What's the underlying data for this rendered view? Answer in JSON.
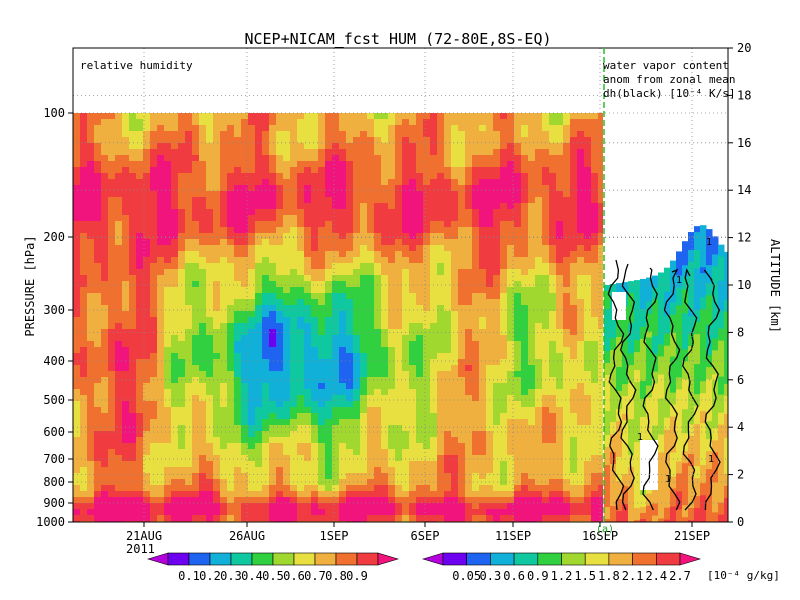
{
  "chart_data": {
    "type": "heatmap",
    "title": "NCEP+NICAM_fcst HUM (72-80E,8S-EQ)",
    "panel_label": "relative humidity",
    "right_panel_label": [
      "water vapor content",
      "anom from zonal mean",
      "dh(black) [10⁻⁴ K/s]"
    ],
    "ylabel": "PRESSURE [hPa]",
    "y2label": "ALTITUDE [km]",
    "y_ticks": [
      "100",
      "200",
      "300",
      "400",
      "500",
      "600",
      "700",
      "800",
      "900",
      "1000"
    ],
    "y2_ticks": [
      "0",
      "2",
      "4",
      "6",
      "8",
      "10",
      "12",
      "14",
      "16",
      "18",
      "20"
    ],
    "x_ticks": [
      "21AUG",
      "26AUG",
      "1SEP",
      "6SEP",
      "11SEP",
      "16SEP",
      "21SEP"
    ],
    "year_label": "2011",
    "forecast_marker": "(a)",
    "grid": true,
    "contour_label": "1",
    "colorbars": [
      {
        "name": "relative humidity",
        "labels": [
          "0.1",
          "0.2",
          "0.3",
          "0.4",
          "0.5",
          "0.6",
          "0.7",
          "0.8",
          "0.9"
        ],
        "colors": [
          "#b400dc",
          "#6e00f0",
          "#1e64f0",
          "#10b0d8",
          "#10c8a0",
          "#30d040",
          "#a0d830",
          "#e8e040",
          "#f0b040",
          "#f07030",
          "#f03c40",
          "#f0147c"
        ]
      },
      {
        "name": "water vapor content",
        "labels": [
          "0.05",
          "0.3",
          "0.6",
          "0.9",
          "1.2",
          "1.5",
          "1.8",
          "2.1",
          "2.4",
          "2.7"
        ],
        "units": "[10⁻⁴ g/kg]",
        "colors": [
          "#b400dc",
          "#6e00f0",
          "#1e64f0",
          "#10b0d8",
          "#10c8a0",
          "#30d040",
          "#a0d830",
          "#e8e040",
          "#f0b040",
          "#f07030",
          "#f03c40",
          "#f0147c"
        ]
      }
    ]
  }
}
